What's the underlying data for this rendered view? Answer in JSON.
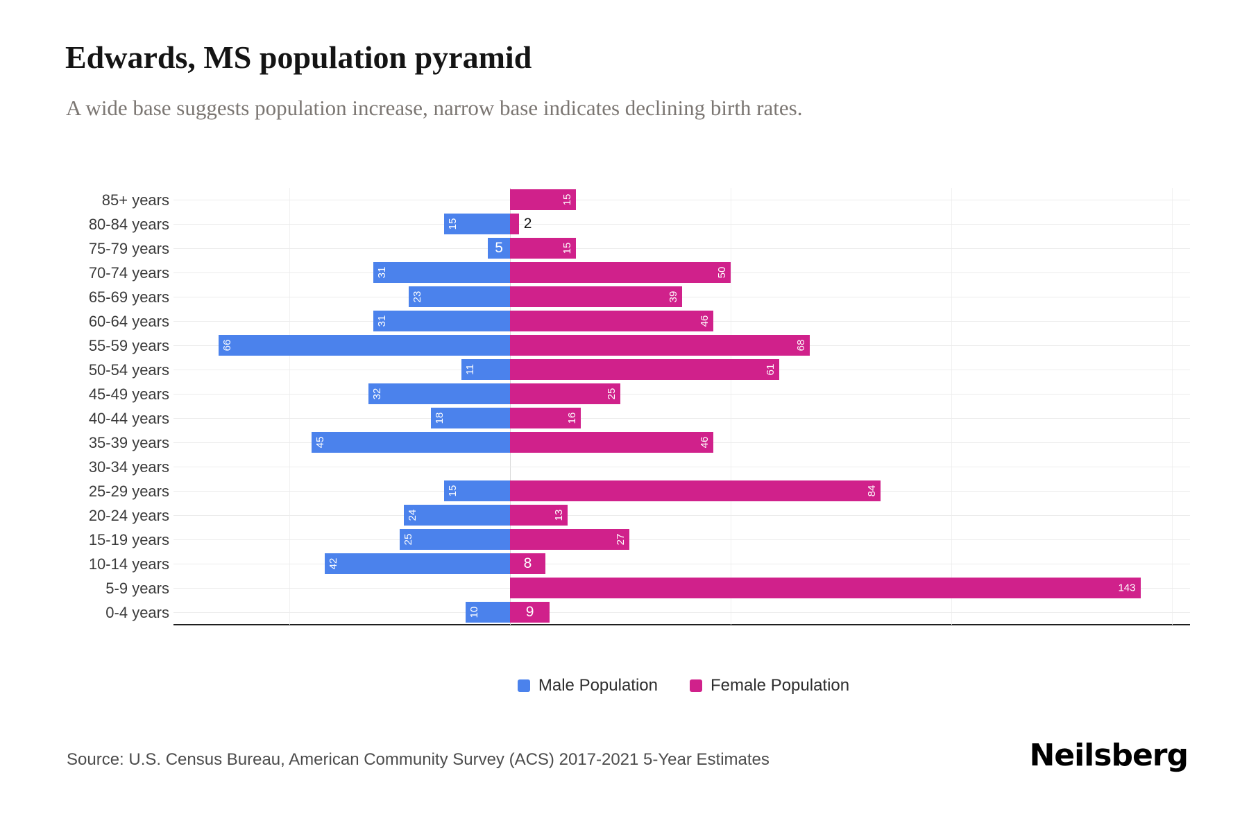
{
  "title": "Edwards, MS population pyramid",
  "subtitle": "A wide base suggests population increase, narrow base indicates declining birth rates.",
  "source": "Source: U.S. Census Bureau, American Community Survey (ACS) 2017-2021 5-Year Estimates",
  "logo": "Neilsberg",
  "legend": {
    "male": "Male Population",
    "female": "Female Population"
  },
  "colors": {
    "male": "#4b82ec",
    "female": "#d0218b"
  },
  "chart_data": {
    "type": "bar",
    "variant": "population-pyramid",
    "title": "Edwards, MS population pyramid",
    "categories": [
      "85+ years",
      "80-84 years",
      "75-79 years",
      "70-74 years",
      "65-69 years",
      "60-64 years",
      "55-59 years",
      "50-54 years",
      "45-49 years",
      "40-44 years",
      "35-39 years",
      "30-34 years",
      "25-29 years",
      "20-24 years",
      "15-19 years",
      "10-14 years",
      "5-9 years",
      "0-4 years"
    ],
    "series": [
      {
        "name": "Male Population",
        "values": [
          0,
          15,
          5,
          31,
          23,
          31,
          66,
          11,
          32,
          18,
          45,
          0,
          15,
          24,
          25,
          42,
          0,
          10
        ]
      },
      {
        "name": "Female Population",
        "values": [
          15,
          2,
          15,
          50,
          39,
          46,
          68,
          61,
          25,
          16,
          46,
          0,
          84,
          13,
          27,
          8,
          143,
          9
        ]
      }
    ],
    "xlim": [
      -78,
      154
    ],
    "gridlines_units": [
      -50,
      0,
      50,
      100,
      150
    ],
    "legend_position": "bottom",
    "grid": "horizontal-per-row",
    "data_labels": "inside-bar-ends, white, rotated 90deg; small values shown outside in black"
  }
}
